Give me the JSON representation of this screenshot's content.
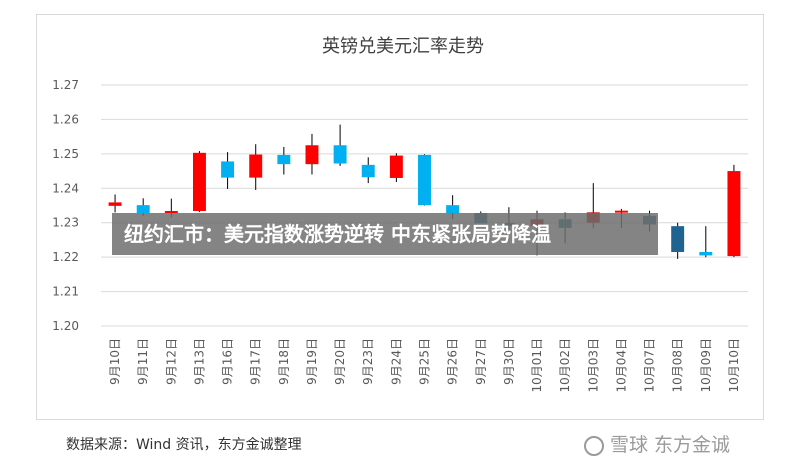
{
  "banner": "纽约汇市：美元指数涨势逆转 中东紧张局势降温",
  "source_note": "数据来源：Wind 资讯，东方金诚整理",
  "watermark": "雪球 东方金诚",
  "colors": {
    "up": "#FF0000",
    "up_dark": "#C00000",
    "down": "#00B0F0",
    "down_dark": "#1F6391",
    "grid": "#D9D9D9"
  },
  "chart_data": {
    "type": "candlestick",
    "title": "英镑兑美元汇率走势",
    "ylim": [
      1.2,
      1.27
    ],
    "yticks": [
      "1.20",
      "1.21",
      "1.22",
      "1.23",
      "1.24",
      "1.25",
      "1.26",
      "1.27"
    ],
    "grid": true,
    "categories": [
      "9月10日",
      "9月11日",
      "9月12日",
      "9月13日",
      "9月16日",
      "9月17日",
      "9月18日",
      "9月19日",
      "9月20日",
      "9月23日",
      "9月24日",
      "9月25日",
      "9月26日",
      "9月27日",
      "9月30日",
      "10月01日",
      "10月02日",
      "10月03日",
      "10月04日",
      "10月07日",
      "10月08日",
      "10月09日",
      "10月10日"
    ],
    "series": [
      {
        "open": 1.2349,
        "high": 1.2382,
        "low": 1.233,
        "close": 1.2359,
        "color": "up"
      },
      {
        "open": 1.2351,
        "high": 1.2371,
        "low": 1.232,
        "close": 1.2328,
        "color": "down"
      },
      {
        "open": 1.233,
        "high": 1.237,
        "low": 1.2315,
        "close": 1.2334,
        "color": "up"
      },
      {
        "open": 1.2334,
        "high": 1.2508,
        "low": 1.2331,
        "close": 1.2503,
        "color": "up"
      },
      {
        "open": 1.2478,
        "high": 1.2505,
        "low": 1.2398,
        "close": 1.2431,
        "color": "down"
      },
      {
        "open": 1.2431,
        "high": 1.2528,
        "low": 1.2395,
        "close": 1.2498,
        "color": "up"
      },
      {
        "open": 1.2497,
        "high": 1.252,
        "low": 1.244,
        "close": 1.247,
        "color": "down"
      },
      {
        "open": 1.247,
        "high": 1.2558,
        "low": 1.244,
        "close": 1.2525,
        "color": "up"
      },
      {
        "open": 1.2525,
        "high": 1.2585,
        "low": 1.2465,
        "close": 1.2472,
        "color": "down"
      },
      {
        "open": 1.2468,
        "high": 1.249,
        "low": 1.2415,
        "close": 1.2432,
        "color": "down"
      },
      {
        "open": 1.243,
        "high": 1.2502,
        "low": 1.2418,
        "close": 1.2495,
        "color": "up"
      },
      {
        "open": 1.2497,
        "high": 1.2499,
        "low": 1.235,
        "close": 1.2351,
        "color": "down"
      },
      {
        "open": 1.2351,
        "high": 1.238,
        "low": 1.231,
        "close": 1.2328,
        "color": "down"
      },
      {
        "open": 1.2328,
        "high": 1.2333,
        "low": 1.23,
        "close": 1.2298,
        "color": "down_dark"
      },
      {
        "open": 1.2299,
        "high": 1.2345,
        "low": 1.227,
        "close": 1.229,
        "color": "down_dark"
      },
      {
        "open": 1.229,
        "high": 1.2335,
        "low": 1.2205,
        "close": 1.231,
        "color": "up_dark"
      },
      {
        "open": 1.231,
        "high": 1.233,
        "low": 1.224,
        "close": 1.2285,
        "color": "down_dark"
      },
      {
        "open": 1.23,
        "high": 1.2415,
        "low": 1.2285,
        "close": 1.233,
        "color": "up_dark"
      },
      {
        "open": 1.233,
        "high": 1.234,
        "low": 1.2285,
        "close": 1.2335,
        "color": "up"
      },
      {
        "open": 1.232,
        "high": 1.2335,
        "low": 1.2275,
        "close": 1.2295,
        "color": "down_dark"
      },
      {
        "open": 1.229,
        "high": 1.23,
        "low": 1.2195,
        "close": 1.2215,
        "color": "down_dark"
      },
      {
        "open": 1.2215,
        "high": 1.229,
        "low": 1.22,
        "close": 1.2205,
        "color": "down"
      },
      {
        "open": 1.2203,
        "high": 1.2468,
        "low": 1.22,
        "close": 1.245,
        "color": "up"
      }
    ]
  }
}
